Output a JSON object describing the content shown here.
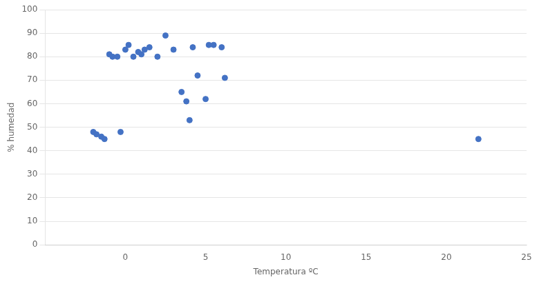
{
  "chart_data": {
    "type": "scatter",
    "x": [
      -2,
      -1.8,
      -1.5,
      -1.3,
      -1,
      -0.8,
      -0.5,
      -0.3,
      0,
      0.2,
      0.5,
      0.8,
      1,
      1.2,
      1.5,
      2,
      2.5,
      3,
      3.5,
      3.8,
      4,
      4.2,
      4.5,
      5,
      5.2,
      5.5,
      6,
      6.2,
      22
    ],
    "values": [
      48,
      47,
      46,
      45,
      81,
      80,
      80,
      48,
      83,
      85,
      80,
      82,
      81,
      83,
      84,
      80,
      89,
      83,
      65,
      61,
      53,
      84,
      72,
      62,
      85,
      85,
      84,
      71,
      45
    ],
    "color": "#4472C4",
    "xlabel": "Temperatura ºC",
    "ylabel": "% humedad",
    "xlim": [
      -5,
      25
    ],
    "ylim": [
      0,
      100
    ],
    "xticks": [
      0,
      5,
      10,
      15,
      20,
      25
    ],
    "yticks": [
      0,
      10,
      20,
      30,
      40,
      50,
      60,
      70,
      80,
      90,
      100
    ],
    "grid": "y"
  }
}
